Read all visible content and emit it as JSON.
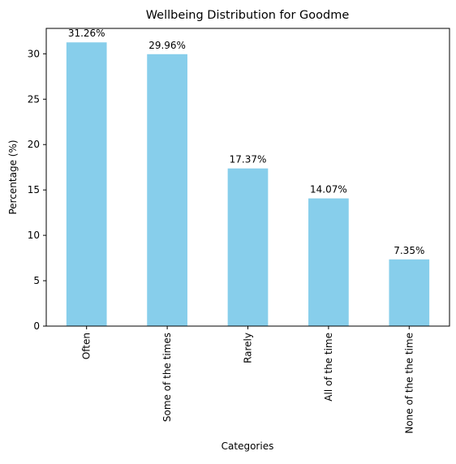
{
  "chart_data": {
    "type": "bar",
    "title": "Wellbeing Distribution for Goodme",
    "xlabel": "Categories",
    "ylabel": "Percentage (%)",
    "categories": [
      "Often",
      "Some of the times",
      "Rarely",
      "All of the time",
      "None of the the time"
    ],
    "values": [
      31.26,
      29.96,
      17.37,
      14.07,
      7.35
    ],
    "data_labels": [
      "31.26%",
      "29.96%",
      "17.37%",
      "14.07%",
      "7.35%"
    ],
    "ylim": [
      0,
      32.8
    ],
    "yticks": [
      0,
      5,
      10,
      15,
      20,
      25,
      30
    ],
    "bar_color": "#87ceeb",
    "grid": false,
    "legend": "none"
  }
}
